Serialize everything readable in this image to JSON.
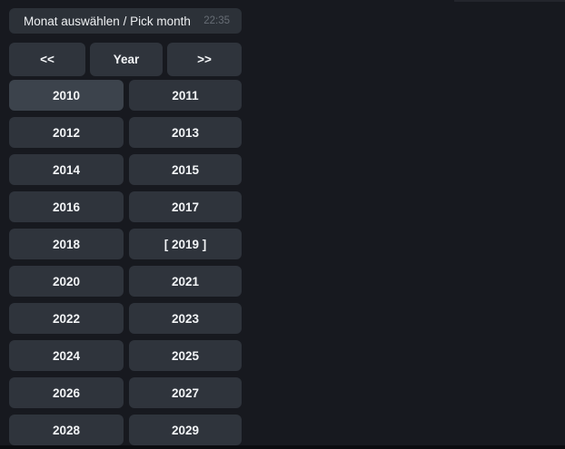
{
  "message": {
    "text": "Monat auswählen / Pick month",
    "time": "22:35"
  },
  "keyboard": {
    "nav": {
      "prev": "<<",
      "mode": "Year",
      "next": ">>"
    },
    "years": [
      {
        "label": "2010"
      },
      {
        "label": "2011"
      },
      {
        "label": "2012"
      },
      {
        "label": "2013"
      },
      {
        "label": "2014"
      },
      {
        "label": "2015"
      },
      {
        "label": "2016"
      },
      {
        "label": "2017"
      },
      {
        "label": "2018"
      },
      {
        "label": "[ 2019 ]"
      },
      {
        "label": "2020"
      },
      {
        "label": "2021"
      },
      {
        "label": "2022"
      },
      {
        "label": "2023"
      },
      {
        "label": "2024"
      },
      {
        "label": "2025"
      },
      {
        "label": "2026"
      },
      {
        "label": "2027"
      },
      {
        "label": "2028"
      },
      {
        "label": "2029"
      }
    ],
    "selected_year": "2019",
    "highlighted_year": "2010"
  },
  "colors": {
    "background": "#17191f",
    "bubble": "#2c3138",
    "button": "#2f343c",
    "button_hover": "#3c434c",
    "text": "#f2f4f6",
    "timestamp": "#676d75"
  }
}
